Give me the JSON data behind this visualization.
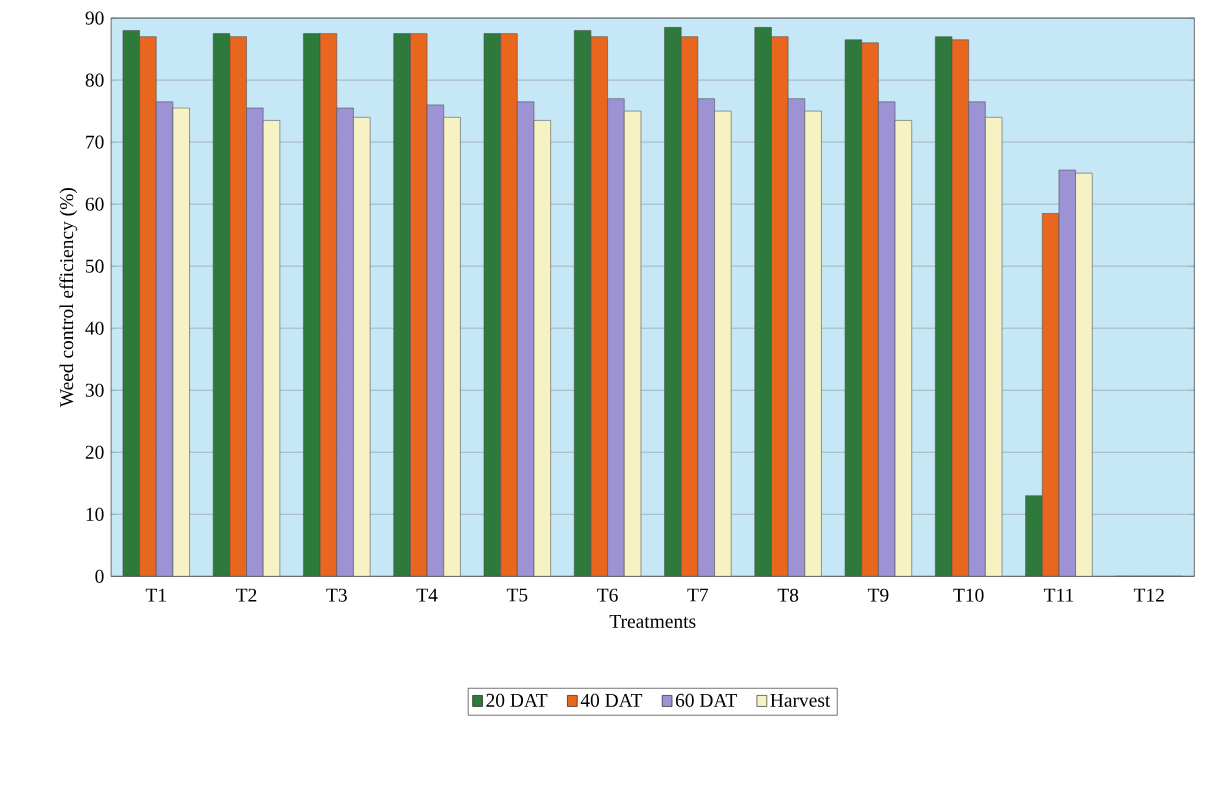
{
  "chart_data": {
    "type": "bar",
    "xlabel": "Treatments",
    "ylabel": "Weed control efficiency (%)",
    "categories": [
      "T1",
      "T2",
      "T3",
      "T4",
      "T5",
      "T6",
      "T7",
      "T8",
      "T9",
      "T10",
      "T11",
      "T12"
    ],
    "series": [
      {
        "name": "20 DAT",
        "color": "#2e7a3c",
        "values": [
          88,
          87.5,
          87.5,
          87.5,
          87.5,
          88,
          88.5,
          88.5,
          86.5,
          87,
          13,
          0
        ]
      },
      {
        "name": "40 DAT",
        "color": "#e8661e",
        "values": [
          87,
          87,
          87.5,
          87.5,
          87.5,
          87,
          87,
          87,
          86,
          86.5,
          58.5,
          0
        ]
      },
      {
        "name": "60 DAT",
        "color": "#9d92d4",
        "values": [
          76.5,
          75.5,
          75.5,
          76,
          76.5,
          77,
          77,
          77,
          76.5,
          76.5,
          65.5,
          0
        ]
      },
      {
        "name": "Harvest",
        "color": "#f6f2c4",
        "values": [
          75.5,
          73.5,
          74,
          74,
          73.5,
          75,
          75,
          75,
          73.5,
          74,
          65,
          0
        ]
      }
    ],
    "ylim": [
      0,
      90
    ],
    "yticks": [
      0,
      10,
      20,
      30,
      40,
      50,
      60,
      70,
      80,
      90
    ],
    "grid": "y",
    "legend": "bottom"
  }
}
